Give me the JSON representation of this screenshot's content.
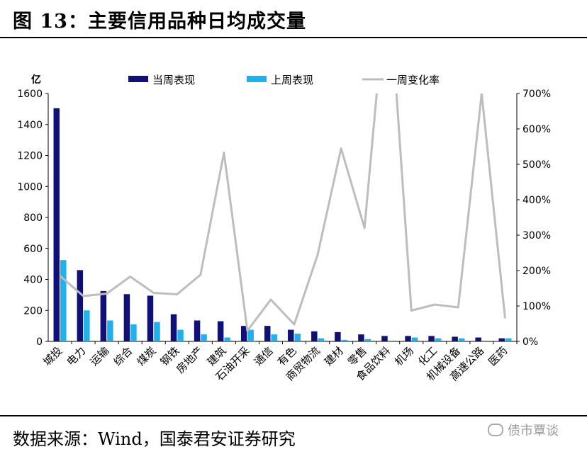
{
  "header": {
    "title": "图 13：主要信用品种日均成交量"
  },
  "footer": {
    "source": "数据来源：Wind，国泰君安证券研究",
    "watermark": "债市覃谈"
  },
  "colors": {
    "current": "#101177",
    "previous": "#22B0EC",
    "change": "#BDBDBD"
  },
  "chart_data": {
    "type": "bar",
    "title": "主要信用品种日均成交量",
    "ylabel": "亿",
    "ylim": [
      0,
      1600
    ],
    "y2lim": [
      0,
      7
    ],
    "yticks": [
      "0",
      "200",
      "400",
      "600",
      "800",
      "1000",
      "1200",
      "1400",
      "1600"
    ],
    "y2ticks": [
      "0%",
      "100%",
      "200%",
      "300%",
      "400%",
      "500%",
      "600%",
      "700%"
    ],
    "legend_position": "top",
    "categories": [
      "城投",
      "电力",
      "运输",
      "综合",
      "煤炭",
      "钢铁",
      "房地产",
      "建筑",
      "石油开采",
      "通信",
      "有色",
      "商贸物流",
      "建材",
      "零售",
      "食品饮料",
      "机场",
      "化工",
      "机械设备",
      "高速公路",
      "医药"
    ],
    "series": [
      {
        "name": "当周表现",
        "kind": "bar",
        "axis": "left",
        "values": [
          1505,
          460,
          325,
          305,
          295,
          175,
          135,
          130,
          100,
          100,
          75,
          65,
          60,
          45,
          35,
          35,
          35,
          30,
          25,
          20
        ]
      },
      {
        "name": "上周表现",
        "kind": "bar",
        "axis": "left",
        "values": [
          525,
          200,
          135,
          110,
          125,
          75,
          45,
          25,
          75,
          45,
          50,
          20,
          10,
          15,
          5,
          25,
          20,
          20,
          5,
          20
        ]
      },
      {
        "name": "一周变化率",
        "kind": "line",
        "axis": "right",
        "values": [
          1.85,
          1.28,
          1.35,
          1.83,
          1.37,
          1.33,
          1.88,
          5.33,
          0.3,
          1.18,
          0.48,
          2.45,
          5.45,
          3.2,
          10.5,
          0.87,
          1.04,
          0.96,
          7.0,
          0.65
        ]
      }
    ]
  }
}
